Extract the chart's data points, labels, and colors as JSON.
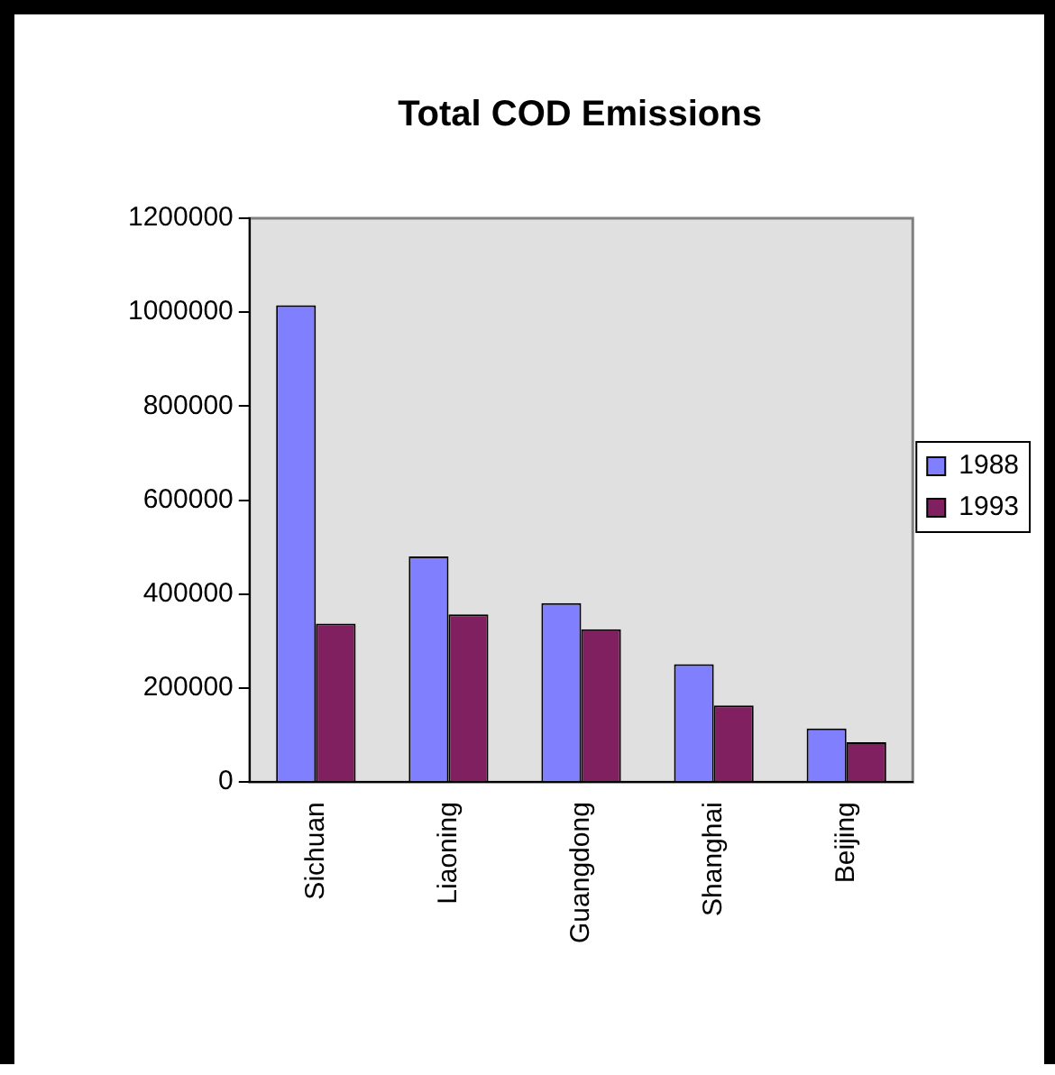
{
  "chart_data": {
    "type": "bar",
    "title": "Total COD Emissions",
    "categories": [
      "Sichuan",
      "Liaoning",
      "Guangdong",
      "Shanghai",
      "Beijing"
    ],
    "series": [
      {
        "name": "1988",
        "color": "#8080ff",
        "values": [
          1015000,
          480000,
          381000,
          251000,
          114000
        ]
      },
      {
        "name": "1993",
        "color": "#802060",
        "values": [
          337000,
          357000,
          325000,
          163000,
          85000
        ]
      }
    ],
    "ylim": [
      0,
      1200000
    ],
    "yticks": [
      0,
      200000,
      400000,
      600000,
      800000,
      1000000,
      1200000
    ],
    "grid": false,
    "legend": "right"
  }
}
